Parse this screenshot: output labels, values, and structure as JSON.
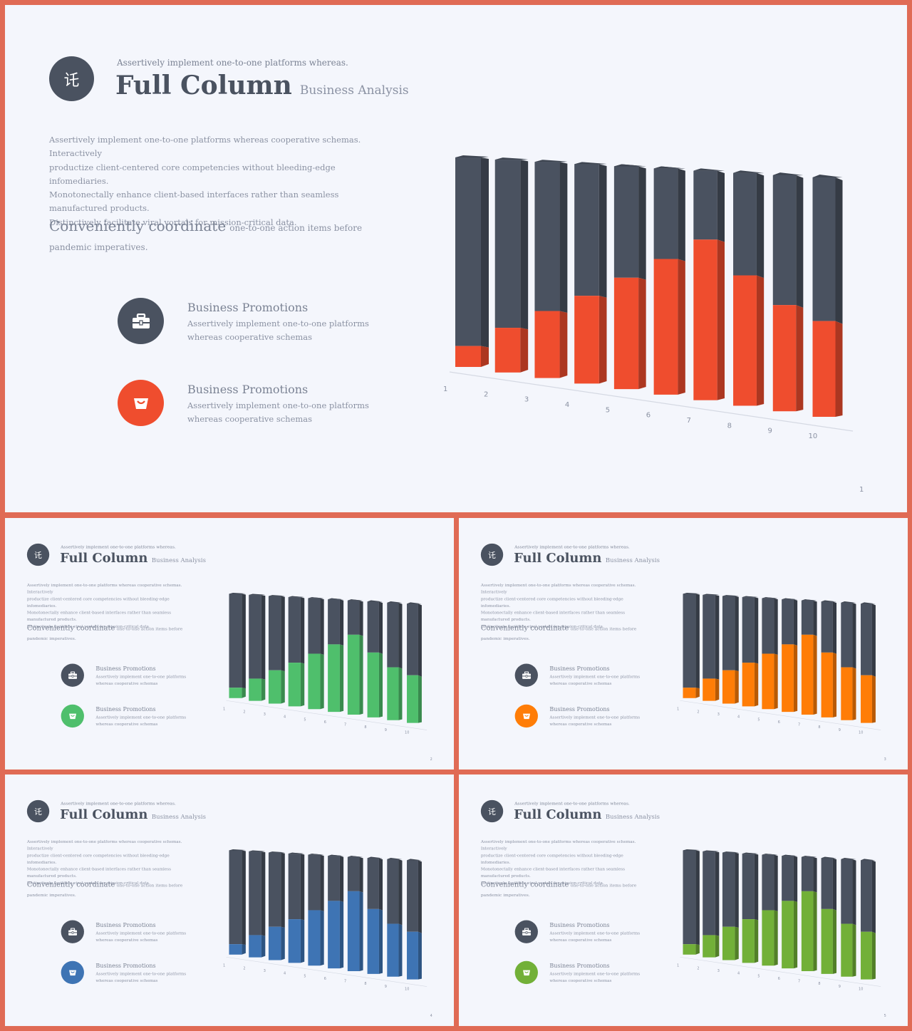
{
  "slides": [
    {
      "accent": "#ef4d2e",
      "page_num": "1"
    },
    {
      "accent": "#4fbf6c",
      "page_num": "2"
    },
    {
      "accent": "#ff7d07",
      "page_num": "3"
    },
    {
      "accent": "#3e74b4",
      "page_num": "4"
    },
    {
      "accent": "#72b038",
      "page_num": "5"
    }
  ],
  "header": {
    "logo_glyph": "讬",
    "kicker": "Assertively implement one-to-one platforms whereas.",
    "title": "Full Column",
    "subtitle": "Business Analysis"
  },
  "intro": {
    "lines": [
      "Assertively implement one-to-one platforms whereas cooperative schemas. Interactively",
      "productize client-centered core competencies without bleeding-edge infomediaries.",
      "Monotonectally enhance client-based interfaces rather than seamless manufactured products.",
      "Distinctively facilitate viral vortals for mission-critical data."
    ]
  },
  "coordinate": {
    "heading": "Conveniently coordinate",
    "text": "one-to-one action items before pandemic imperatives."
  },
  "promotions": [
    {
      "title": "Business Promotions",
      "desc": "Assertively implement one-to-one platforms whereas cooperative schemas",
      "icon": "briefcase-icon",
      "color": "#4a5260"
    },
    {
      "title": "Business Promotions",
      "desc": "Assertively implement one-to-one platforms whereas cooperative schemas",
      "icon": "basket-icon",
      "color": "accent"
    }
  ],
  "colors": {
    "dark": "#4a5260",
    "background": "#f4f6fc",
    "frame": "#e06b55"
  },
  "chart_data": {
    "type": "bar",
    "stacked": true,
    "view": "3d",
    "categories": [
      "1",
      "2",
      "3",
      "4",
      "5",
      "6",
      "7",
      "8",
      "9",
      "10"
    ],
    "series": [
      {
        "values": [
          10,
          21,
          31,
          40,
          50,
          60,
          70,
          56,
          45,
          40
        ]
      },
      {
        "values": [
          90,
          79,
          69,
          60,
          50,
          40,
          30,
          44,
          55,
          60
        ]
      }
    ],
    "ylim": [
      0,
      100
    ],
    "grid": false
  }
}
